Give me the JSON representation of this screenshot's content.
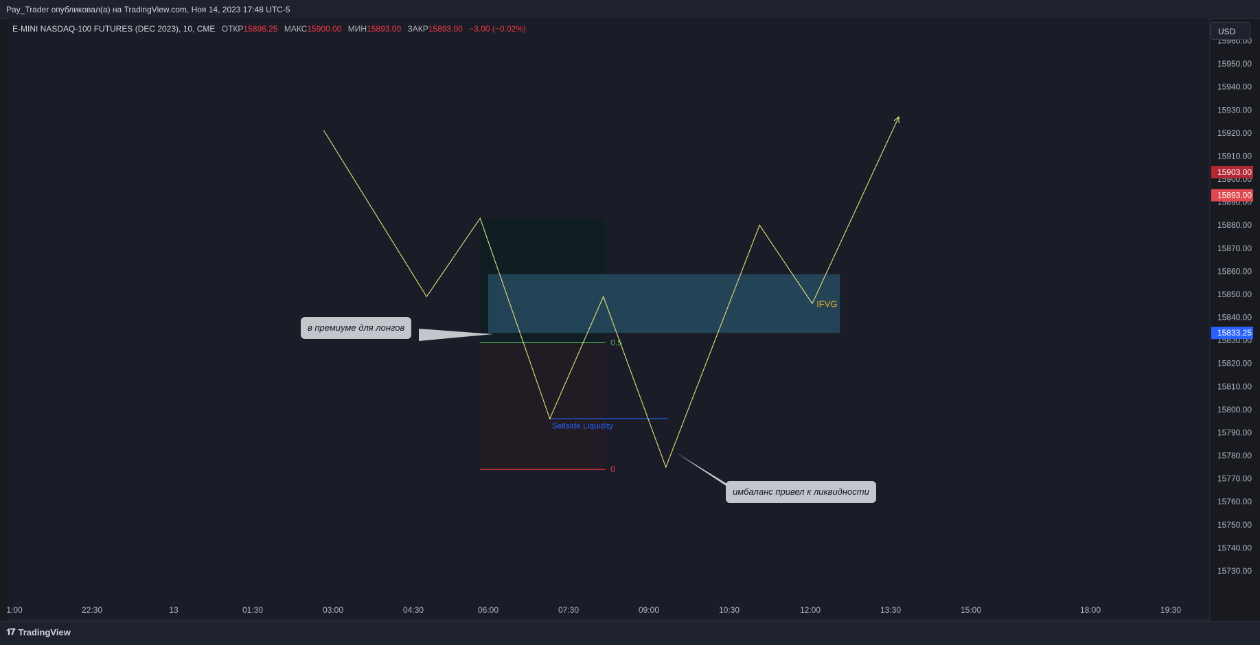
{
  "header": {
    "published": "Pay_Trader опубликовал(а) на TradingView.com, Ноя 14, 2023 17:48 UTC-5"
  },
  "legend": {
    "symbol": "E-MINI NASDAQ-100 FUTURES (DEC 2023), 10, CME",
    "open_label": "ОТКР",
    "open": "15896.25",
    "high_label": "МАКС",
    "high": "15900.00",
    "low_label": "МИН",
    "low": "15893.00",
    "close_label": "ЗАКР",
    "close": "15893.00",
    "change": "−3.00 (−0.02%)"
  },
  "currency": "USD",
  "footer": {
    "brand": "TradingView"
  },
  "callouts": {
    "premium": "в премиуме для лонгов",
    "imbalance": "имбаланс привел к ликвидности"
  },
  "colors": {
    "path": "#e8e07c",
    "fib_half": "#4caf50",
    "fib_zero": "#f23645",
    "liquidity": "#2962ff",
    "ifvg_text": "#f0a830",
    "badge_red_dark": "#b22833",
    "badge_red": "#e0474f",
    "badge_blue": "#2962ff"
  },
  "chart_data": {
    "type": "line",
    "title": "",
    "x_ticks": [
      "1:00",
      "22:30",
      "13",
      "01:30",
      "03:00",
      "04:30",
      "06:00",
      "07:30",
      "09:00",
      "10:30",
      "12:00",
      "13:30",
      "15:00",
      "18:00",
      "19:30"
    ],
    "y_range": [
      15727,
      15967
    ],
    "y_ticks": [
      15730,
      15740,
      15750,
      15760,
      15770,
      15780,
      15790,
      15800,
      15810,
      15820,
      15830,
      15840,
      15850,
      15860,
      15870,
      15880,
      15890,
      15900,
      15910,
      15920,
      15930,
      15940,
      15950,
      15960
    ],
    "series": [
      {
        "values": [
          [
            "02:56",
            15921
          ],
          [
            "04:51",
            15849
          ],
          [
            "05:51",
            15883
          ],
          [
            "07:09",
            15796
          ],
          [
            "08:09",
            15849
          ],
          [
            "09:19",
            15775
          ],
          [
            "11:04",
            15880
          ],
          [
            "12:03",
            15846
          ],
          [
            "13:40",
            15927
          ]
        ]
      }
    ],
    "zones": [
      {
        "label": "",
        "x0": "05:51",
        "x1": "08:11",
        "y0": 15774,
        "y1": 15883,
        "color": "#0d1f24"
      },
      {
        "label": "IFVG",
        "x0": "06:00",
        "x1": "12:34",
        "y0": 15833.25,
        "y1": 15858.75,
        "color": "#264a5f"
      }
    ],
    "levels": [
      {
        "label": "0.5",
        "y": 15829,
        "x0": "05:51",
        "x1": "08:11",
        "color": "#4caf50"
      },
      {
        "label": "0",
        "y": 15774,
        "x0": "05:51",
        "x1": "08:11",
        "color": "#f23645"
      },
      {
        "label": "Sellside Liquidity",
        "y": 15796,
        "x0": "07:09",
        "x1": "09:21",
        "color": "#2962ff"
      }
    ],
    "price_badges": [
      {
        "value": "15903.00",
        "color": "#b22833"
      },
      {
        "value": "15893.00",
        "color": "#e0474f"
      },
      {
        "value": "15833.25",
        "color": "#2962ff"
      }
    ]
  }
}
